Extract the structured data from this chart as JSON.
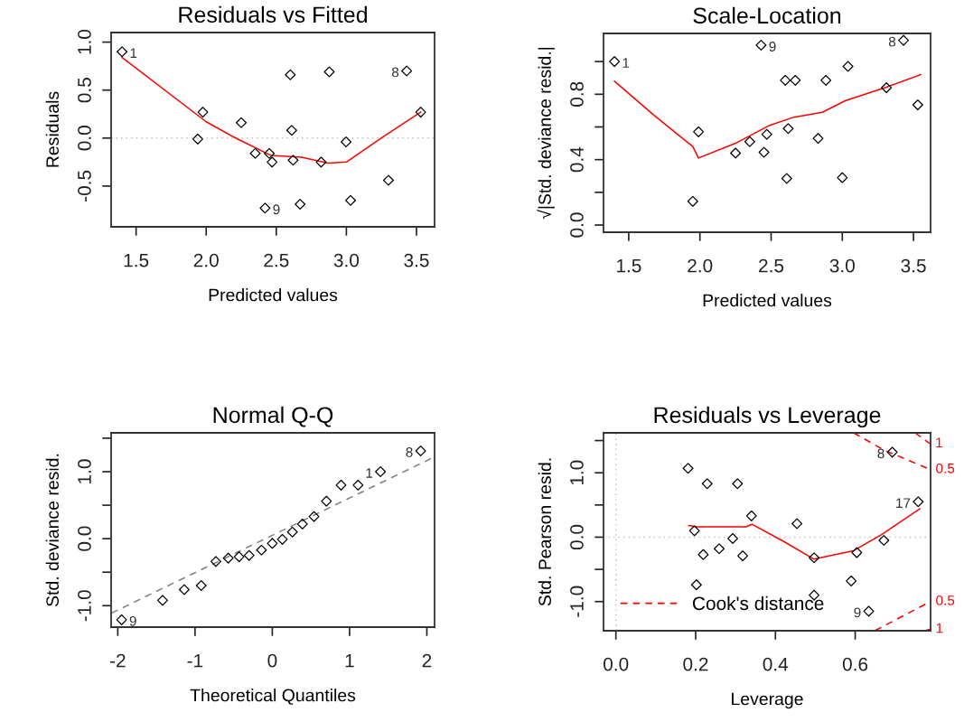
{
  "chart_data": [
    {
      "type": "scatter",
      "title": "Residuals vs Fitted",
      "xlabel": "Predicted values",
      "ylabel": "Residuals",
      "xlim": [
        1.322,
        3.629
      ],
      "xticks": [
        {
          "value": 1.5,
          "label": "1.5"
        },
        {
          "value": 2.0,
          "label": "2.0"
        },
        {
          "value": 2.5,
          "label": "2.5"
        },
        {
          "value": 3.0,
          "label": "3.0"
        },
        {
          "value": 3.5,
          "label": "3.5"
        }
      ],
      "ylim": [
        -0.925,
        1.1
      ],
      "yticks": [
        {
          "value": -0.5,
          "label": "-0.5"
        },
        {
          "value": 0.0,
          "label": "0.0"
        },
        {
          "value": 0.5,
          "label": "0.5"
        },
        {
          "value": 1.0,
          "label": "1.0"
        }
      ],
      "grid": false,
      "legend": false,
      "series": [
        {
          "type": "scatter",
          "color": "#000000",
          "marker": "diamond",
          "x": [
            1.4,
            1.976,
            1.94,
            2.25,
            2.6,
            2.61,
            2.878,
            3.43,
            3.53,
            2.998,
            2.35,
            2.45,
            2.47,
            2.62,
            2.82,
            3.3,
            2.42,
            2.67,
            3.03
          ],
          "values": [
            0.9,
            0.27,
            -0.01,
            0.16,
            0.66,
            0.08,
            0.69,
            0.7,
            0.27,
            -0.04,
            -0.16,
            -0.16,
            -0.25,
            -0.23,
            -0.25,
            -0.44,
            -0.73,
            -0.69,
            -0.65
          ]
        },
        {
          "type": "line",
          "color": "#ff0000",
          "marker": "none",
          "line_style": "solid",
          "x": [
            1.4,
            2.0,
            2.21,
            2.46,
            2.68,
            2.87,
            3.0,
            3.26,
            3.53
          ],
          "values": [
            0.84,
            0.17,
            0.0,
            -0.18,
            -0.2,
            -0.26,
            -0.25,
            0.01,
            0.27
          ]
        }
      ],
      "ref_lines": [
        {
          "axis": "y",
          "value": 0,
          "color": "#bebebe",
          "line_style": "dotted"
        }
      ],
      "annotations": [
        {
          "text": "1",
          "x": 1.4,
          "y": 0.9
        },
        {
          "text": "8",
          "x": 3.43,
          "y": 0.7
        },
        {
          "text": "9",
          "x": 2.42,
          "y": -0.73
        }
      ]
    },
    {
      "type": "scatter",
      "title": "Scale-Location",
      "xlabel": "Predicted values",
      "ylabel": "√|Std. deviance resid.|",
      "xlim": [
        1.323,
        3.62
      ],
      "xticks": [
        {
          "value": 1.5,
          "label": "1.5"
        },
        {
          "value": 2.0,
          "label": "2.0"
        },
        {
          "value": 2.5,
          "label": "2.5"
        },
        {
          "value": 3.0,
          "label": "3.0"
        },
        {
          "value": 3.5,
          "label": "3.5"
        }
      ],
      "ylim": [
        -0.044,
        1.172
      ],
      "yticks": [
        {
          "value": 0.0,
          "label": "0.0"
        },
        {
          "value": 0.2,
          "label": null
        },
        {
          "value": 0.4,
          "label": "0.4"
        },
        {
          "value": 0.6,
          "label": null
        },
        {
          "value": 0.8,
          "label": "0.8"
        },
        {
          "value": 1.0,
          "label": null
        }
      ],
      "grid": false,
      "legend": false,
      "series": [
        {
          "type": "scatter",
          "color": "#000000",
          "marker": "diamond",
          "x": [
            1.4,
            2.43,
            3.43,
            3.04,
            2.6,
            2.67,
            2.885,
            3.31,
            3.53,
            1.99,
            2.62,
            2.47,
            2.35,
            2.83,
            2.25,
            2.45,
            2.61,
            3.0,
            1.95
          ],
          "values": [
            1.0,
            1.1,
            1.13,
            0.97,
            0.885,
            0.885,
            0.885,
            0.84,
            0.735,
            0.57,
            0.59,
            0.555,
            0.51,
            0.53,
            0.44,
            0.445,
            0.285,
            0.29,
            0.145
          ]
        },
        {
          "type": "line",
          "color": "#ff0000",
          "marker": "none",
          "line_style": "solid",
          "x": [
            1.4,
            1.68,
            1.95,
            1.99,
            2.25,
            2.49,
            2.66,
            2.86,
            3.02,
            3.3,
            3.55
          ],
          "values": [
            0.88,
            0.67,
            0.48,
            0.41,
            0.5,
            0.61,
            0.66,
            0.69,
            0.76,
            0.84,
            0.92
          ]
        }
      ],
      "annotations": [
        {
          "text": "1",
          "x": 1.4,
          "y": 1.0
        },
        {
          "text": "9",
          "x": 2.43,
          "y": 1.1
        },
        {
          "text": "8",
          "x": 3.43,
          "y": 1.13
        }
      ]
    },
    {
      "type": "scatter",
      "title": "Normal Q-Q",
      "xlabel": "Theoretical Quantiles",
      "ylabel": "Std. deviance resid.",
      "xlim": [
        -2.086,
        2.1
      ],
      "xticks": [
        -2,
        -1,
        0,
        1,
        2
      ],
      "ylim": [
        -1.32,
        1.58
      ],
      "yticks": [
        {
          "value": -1.0,
          "label": "-1.0"
        },
        {
          "value": -0.5,
          "label": null
        },
        {
          "value": 0.0,
          "label": "0.0"
        },
        {
          "value": 0.5,
          "label": null
        },
        {
          "value": 1.0,
          "label": "1.0"
        },
        {
          "value": 1.5,
          "label": null
        }
      ],
      "grid": false,
      "legend": false,
      "series": [
        {
          "type": "scatter",
          "color": "#000000",
          "marker": "diamond",
          "x": [
            -1.95,
            -1.42,
            -1.14,
            -0.92,
            -0.73,
            -0.57,
            -0.43,
            -0.3,
            -0.14,
            0.0,
            0.13,
            0.26,
            0.39,
            0.54,
            0.7,
            0.89,
            1.11,
            1.4,
            1.92
          ],
          "values": [
            -1.21,
            -0.92,
            -0.76,
            -0.7,
            -0.34,
            -0.29,
            -0.27,
            -0.25,
            -0.17,
            -0.07,
            -0.01,
            0.1,
            0.22,
            0.33,
            0.56,
            0.8,
            0.8,
            1.0,
            1.31
          ]
        },
        {
          "type": "line",
          "color": "#808080",
          "marker": "none",
          "line_style": "dashed",
          "x": [
            -2.08,
            2.08
          ],
          "values": [
            -1.11,
            1.21
          ]
        }
      ],
      "annotations": [
        {
          "text": "9",
          "x": -1.95,
          "y": -1.21
        },
        {
          "text": "1",
          "x": 1.4,
          "y": 1.0
        },
        {
          "text": "8",
          "x": 1.92,
          "y": 1.31
        }
      ]
    },
    {
      "type": "scatter",
      "title": "Residuals vs Leverage",
      "xlabel": "Leverage",
      "ylabel": "Std. Pearson resid.",
      "xlim": [
        -0.031,
        0.789
      ],
      "xticks": [
        {
          "value": 0.0,
          "label": "0.0"
        },
        {
          "value": 0.2,
          "label": "0.2"
        },
        {
          "value": 0.4,
          "label": "0.4"
        },
        {
          "value": 0.6,
          "label": "0.6"
        }
      ],
      "ylim": [
        -1.453,
        1.62
      ],
      "yticks": [
        {
          "value": -1.0,
          "label": "-1.0"
        },
        {
          "value": -0.5,
          "label": null
        },
        {
          "value": 0.0,
          "label": "0.0"
        },
        {
          "value": 0.5,
          "label": null
        },
        {
          "value": 1.0,
          "label": "1.0"
        },
        {
          "value": 1.5,
          "label": null
        }
      ],
      "grid": false,
      "legend": "bottom left",
      "series": [
        {
          "type": "scatter",
          "color": "#000000",
          "marker": "diamond",
          "x": [
            0.181,
            0.229,
            0.305,
            0.34,
            0.454,
            0.197,
            0.293,
            0.259,
            0.219,
            0.318,
            0.497,
            0.604,
            0.672,
            0.59,
            0.202,
            0.497,
            0.634,
            0.693,
            0.758
          ],
          "values": [
            1.07,
            0.83,
            0.83,
            0.33,
            0.21,
            0.1,
            -0.02,
            -0.18,
            -0.27,
            -0.29,
            -0.32,
            -0.24,
            -0.05,
            -0.68,
            -0.74,
            -0.9,
            -1.15,
            1.32,
            0.55
          ]
        },
        {
          "type": "line",
          "color": "#ff0000",
          "marker": "none",
          "line_style": "solid",
          "x": [
            0.183,
            0.202,
            0.326,
            0.341,
            0.419,
            0.496,
            0.596,
            0.666,
            0.762
          ],
          "values": [
            0.18,
            0.16,
            0.16,
            0.2,
            -0.06,
            -0.34,
            -0.21,
            0.04,
            0.44
          ]
        },
        {
          "type": "line",
          "name": "Cook's distance",
          "color": "#ff0000",
          "marker": "none",
          "line_style": "dashed",
          "x": [
            0.596,
            0.673,
            0.789
          ],
          "values": [
            1.62,
            1.35,
            1.05
          ]
        },
        {
          "type": "line",
          "color": "#ff0000",
          "marker": "none",
          "line_style": "dashed",
          "x": [
            0.75,
            0.788
          ],
          "values": [
            1.62,
            1.45
          ]
        },
        {
          "type": "line",
          "color": "#ff0000",
          "marker": "none",
          "line_style": "dashed",
          "x": [
            0.65,
            0.727,
            0.789
          ],
          "values": [
            -1.45,
            -1.2,
            -1.0
          ]
        },
        {
          "type": "line",
          "color": "#ff0000",
          "marker": "none",
          "line_style": "dashed",
          "x": [
            0.776,
            0.789
          ],
          "values": [
            -1.45,
            -1.43
          ]
        }
      ],
      "ref_lines": [
        {
          "axis": "y",
          "value": 0,
          "color": "#bebebe",
          "line_style": "dotted"
        },
        {
          "axis": "x",
          "value": 0,
          "color": "#bebebe",
          "line_style": "dotted"
        }
      ],
      "annotations": [
        {
          "text": "8",
          "x": 0.693,
          "y": 1.32
        },
        {
          "text": "17",
          "x": 0.758,
          "y": 0.55
        },
        {
          "text": "9",
          "x": 0.634,
          "y": -1.15
        },
        {
          "text": "1",
          "x": 0.788,
          "y": 1.45
        },
        {
          "text": "0.5",
          "x": 0.789,
          "y": 1.05
        },
        {
          "text": "0.5",
          "x": 0.789,
          "y": -1.0
        },
        {
          "text": "1",
          "x": 0.789,
          "y": -1.43
        }
      ]
    }
  ]
}
